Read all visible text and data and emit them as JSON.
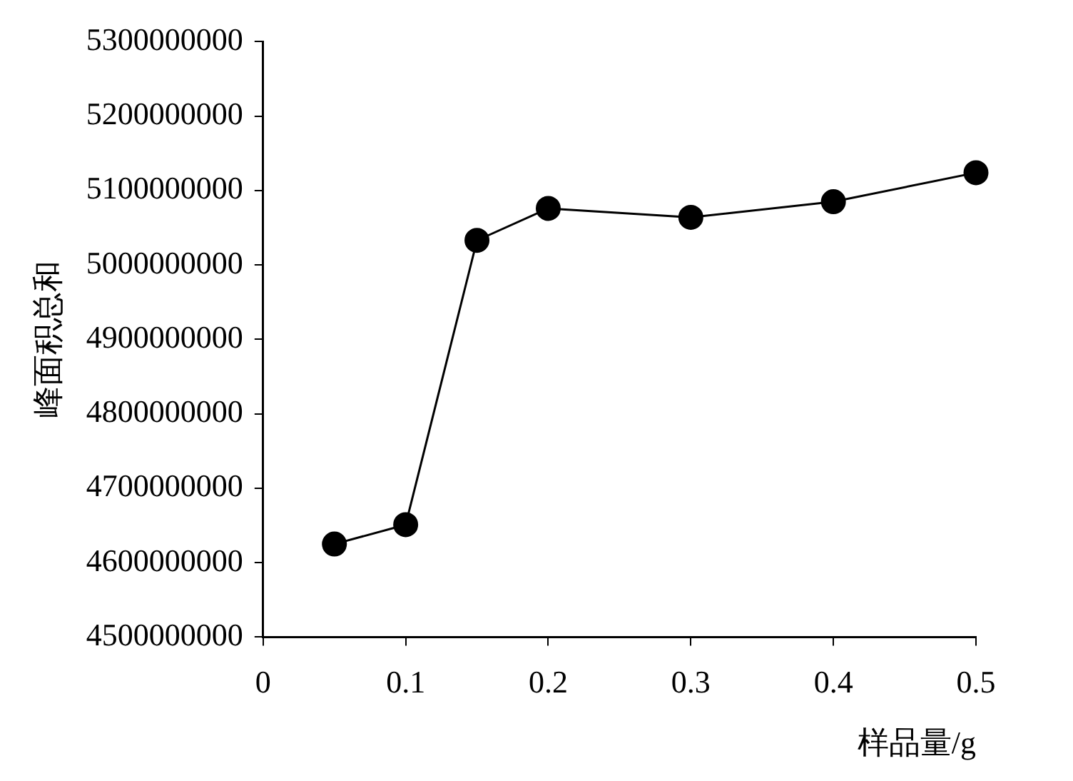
{
  "chart_data": {
    "type": "line",
    "xlabel": "样品量/g",
    "ylabel": "峰面积总和",
    "x": [
      0.05,
      0.1,
      0.15,
      0.2,
      0.3,
      0.4,
      0.5
    ],
    "series": [
      {
        "color": "#000000",
        "values": [
          4625000000,
          4651000000,
          5033000000,
          5076000000,
          5064000000,
          5085000000,
          5124000000
        ]
      }
    ],
    "xlim": [
      0,
      0.5
    ],
    "xticks": [
      0,
      0.1,
      0.2,
      0.3,
      0.4,
      0.5
    ],
    "ylim": [
      4500000000,
      5300000000
    ],
    "yticks": [
      4500000000,
      4600000000,
      4700000000,
      4800000000,
      4900000000,
      5000000000,
      5100000000,
      5200000000,
      5300000000
    ],
    "grid": false,
    "legend": false,
    "marker": "circle",
    "line_style": "solid"
  }
}
